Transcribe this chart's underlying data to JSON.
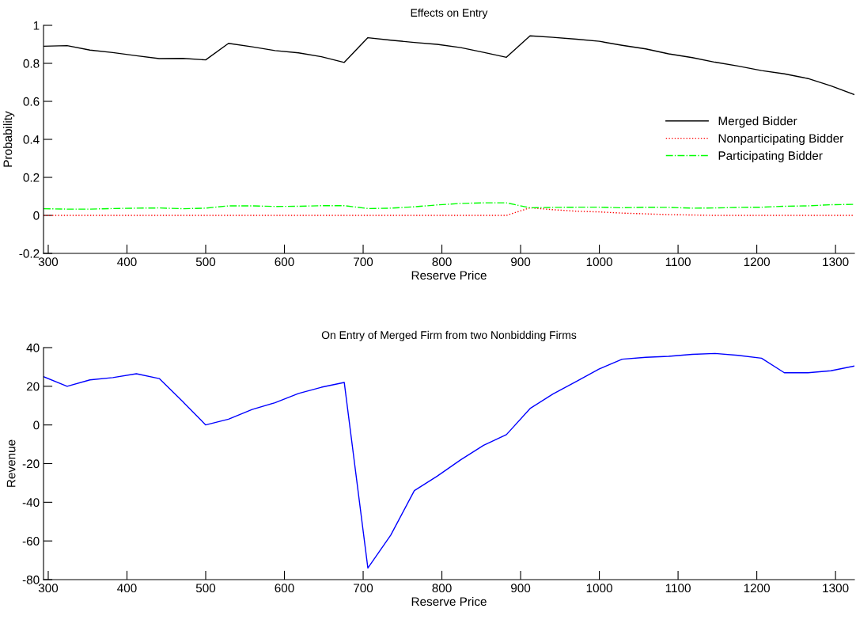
{
  "chart_data": [
    {
      "type": "line",
      "title": "Effects on Entry",
      "xlabel": "Reserve Price",
      "ylabel": "Probability",
      "x": [
        294,
        324,
        353,
        382,
        412,
        441,
        471,
        500,
        529,
        559,
        588,
        618,
        647,
        676,
        706,
        735,
        765,
        794,
        824,
        853,
        882,
        912,
        941,
        971,
        1000,
        1029,
        1059,
        1088,
        1118,
        1147,
        1176,
        1206,
        1235,
        1265,
        1294,
        1324
      ],
      "series": [
        {
          "name": "Merged Bidder",
          "color": "#000000",
          "line_style": "solid",
          "values": [
            0.89,
            0.893,
            0.87,
            0.857,
            0.84,
            0.825,
            0.826,
            0.818,
            0.905,
            0.887,
            0.867,
            0.855,
            0.835,
            0.805,
            0.935,
            0.922,
            0.91,
            0.9,
            0.883,
            0.858,
            0.832,
            0.945,
            0.937,
            0.927,
            0.916,
            0.895,
            0.876,
            0.85,
            0.83,
            0.806,
            0.786,
            0.762,
            0.745,
            0.72,
            0.682,
            0.635
          ]
        },
        {
          "name": "Nonparticipating Bidder",
          "color": "#ff0000",
          "line_style": "dotted",
          "values": [
            0,
            0,
            0,
            0,
            0,
            0,
            0,
            0,
            0,
            0,
            0,
            0,
            0,
            0,
            0,
            0,
            0,
            0,
            0,
            0,
            0,
            0.04,
            0.03,
            0.022,
            0.018,
            0.012,
            0.008,
            0.004,
            0.002,
            0,
            0,
            0,
            0,
            0,
            0,
            0
          ]
        },
        {
          "name": "Participating Bidder",
          "color": "#00ff00",
          "line_style": "dashdot",
          "values": [
            0.035,
            0.033,
            0.033,
            0.036,
            0.038,
            0.039,
            0.035,
            0.038,
            0.05,
            0.05,
            0.047,
            0.048,
            0.051,
            0.051,
            0.036,
            0.038,
            0.045,
            0.055,
            0.063,
            0.066,
            0.066,
            0.04,
            0.042,
            0.043,
            0.043,
            0.04,
            0.043,
            0.042,
            0.038,
            0.039,
            0.042,
            0.043,
            0.048,
            0.05,
            0.056,
            0.058
          ]
        }
      ],
      "xlim": [
        294,
        1324
      ],
      "xticks": [
        300,
        400,
        500,
        600,
        700,
        800,
        900,
        1000,
        1100,
        1200,
        1300
      ],
      "ylim": [
        -0.2,
        1
      ],
      "yticks": [
        -0.2,
        0,
        0.2,
        0.4,
        0.6,
        0.8,
        1
      ],
      "grid": false,
      "legend": "right",
      "marker": "none"
    },
    {
      "type": "line",
      "title": "On Entry of Merged Firm from two Nonbidding Firms",
      "xlabel": "Reserve Price",
      "ylabel": "Revenue",
      "x": [
        294,
        324,
        353,
        382,
        412,
        441,
        471,
        500,
        529,
        559,
        588,
        618,
        647,
        676,
        706,
        735,
        765,
        794,
        824,
        853,
        882,
        912,
        941,
        971,
        1000,
        1029,
        1059,
        1088,
        1118,
        1147,
        1176,
        1206,
        1235,
        1265,
        1294,
        1324
      ],
      "series": [
        {
          "color": "#0000ff",
          "line_style": "solid",
          "values": [
            25,
            20,
            23.3,
            24.5,
            26.5,
            24,
            12,
            0,
            3,
            8,
            11.5,
            16.3,
            19.5,
            22,
            -74,
            -57,
            -34,
            -26.5,
            -18,
            -10.5,
            -5,
            8.5,
            16,
            22.5,
            29,
            34,
            35,
            35.5,
            36.5,
            37,
            36,
            34.5,
            27,
            27,
            28,
            30.5
          ]
        }
      ],
      "xlim": [
        294,
        1324
      ],
      "xticks": [
        300,
        400,
        500,
        600,
        700,
        800,
        900,
        1000,
        1100,
        1200,
        1300
      ],
      "ylim": [
        -80,
        40
      ],
      "yticks": [
        -80,
        -60,
        -40,
        -20,
        0,
        20,
        40
      ],
      "grid": false,
      "legend": false,
      "marker": "none"
    }
  ]
}
